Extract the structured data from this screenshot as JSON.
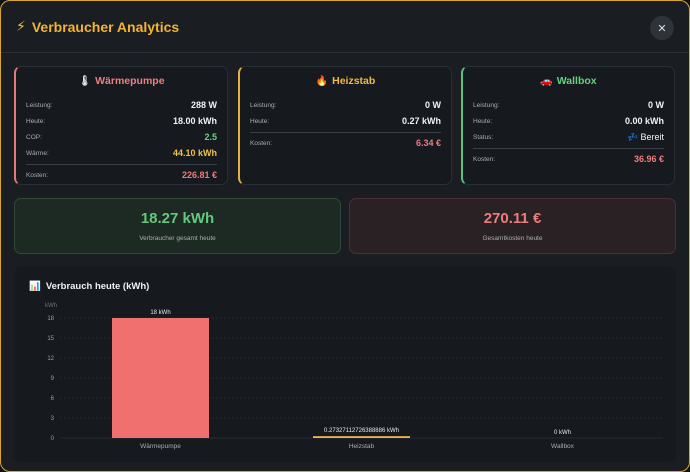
{
  "header": {
    "title": "Verbraucher Analytics",
    "icon": "plug-icon",
    "close_label": "✕"
  },
  "cards": {
    "waermepumpe": {
      "title": "Wärmepumpe",
      "icon": "thermometer-icon",
      "rows": [
        {
          "label": "Leistung:",
          "value": "288 W"
        },
        {
          "label": "Heute:",
          "value": "18.00 kWh"
        },
        {
          "label": "COP:",
          "value": "2.5"
        },
        {
          "label": "Wärme:",
          "value": "44.10 kWh"
        }
      ],
      "cost_label": "Kosten:",
      "cost_value": "226.81 €"
    },
    "heizstab": {
      "title": "Heizstab",
      "icon": "fire-icon",
      "rows": [
        {
          "label": "Leistung:",
          "value": "0 W"
        },
        {
          "label": "Heute:",
          "value": "0.27 kWh"
        }
      ],
      "cost_label": "Kosten:",
      "cost_value": "6.34 €"
    },
    "wallbox": {
      "title": "Wallbox",
      "icon": "car-icon",
      "rows": [
        {
          "label": "Leistung:",
          "value": "0 W"
        },
        {
          "label": "Heute:",
          "value": "0.00 kWh"
        },
        {
          "label": "Status:",
          "value": "Bereit",
          "icon": "sleep-icon"
        }
      ],
      "cost_label": "Kosten:",
      "cost_value": "36.96 €"
    }
  },
  "summary": {
    "total_kwh": "18.27 kWh",
    "total_kwh_label": "Verbraucher gesamt heute",
    "total_cost": "270.11 €",
    "total_cost_label": "Gesamtkosten heute"
  },
  "chart": {
    "title": "Verbrauch heute (kWh)",
    "icon": "bar-chart-icon"
  },
  "chart_data": {
    "type": "bar",
    "title": "Verbrauch heute (kWh)",
    "ylabel": "kWh",
    "xlabel": "",
    "categories": [
      "Wärmepumpe",
      "Heizstab",
      "Wallbox"
    ],
    "values": [
      18,
      0.27327112726388886,
      0
    ],
    "data_labels": [
      "18 kWh",
      "0.27327112726388886 kWh",
      "0 kWh"
    ],
    "colors": [
      "#f0706f",
      "#f2b54a",
      "#55c47a"
    ],
    "ylim": [
      0,
      18
    ],
    "yticks": [
      0,
      3,
      6,
      9,
      12,
      15,
      18
    ],
    "grid": true,
    "legend": "none"
  }
}
